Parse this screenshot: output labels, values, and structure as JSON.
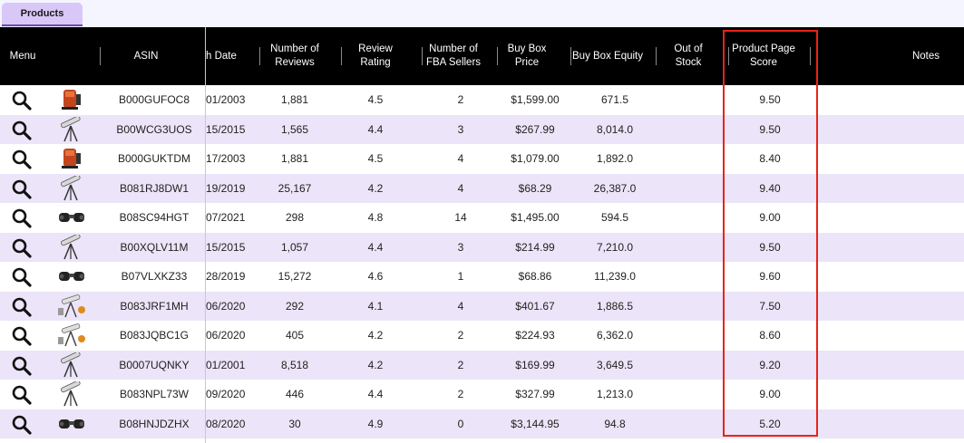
{
  "tabs": [
    {
      "label": "Products",
      "active": true
    }
  ],
  "columns": {
    "menu": "Menu",
    "asin": "ASIN",
    "launch_date": "h Date",
    "reviews": "Number of\nReviews",
    "rating": "Review\nRating",
    "fba_sellers": "Number of\nFBA Sellers",
    "price": "Buy Box\nPrice",
    "equity": "Buy Box Equity",
    "oos": "Out of\nStock",
    "score": "Product Page\nScore",
    "notes": "Notes"
  },
  "rows": [
    {
      "icon": "search-icon",
      "thumb": "telescope-orange",
      "asin": "B000GUFOC8",
      "date": "01/2003",
      "reviews": "1,881",
      "rating": "4.5",
      "fba": "2",
      "price": "$1,599.00",
      "equity": "671.5",
      "oos": "",
      "score": "9.50"
    },
    {
      "icon": "search-icon",
      "thumb": "telescope-tripod",
      "asin": "B00WCG3UOS",
      "date": "15/2015",
      "reviews": "1,565",
      "rating": "4.4",
      "fba": "3",
      "price": "$267.99",
      "equity": "8,014.0",
      "oos": "",
      "score": "9.50"
    },
    {
      "icon": "search-icon",
      "thumb": "telescope-orange",
      "asin": "B000GUKTDM",
      "date": "17/2003",
      "reviews": "1,881",
      "rating": "4.5",
      "fba": "4",
      "price": "$1,079.00",
      "equity": "1,892.0",
      "oos": "",
      "score": "8.40"
    },
    {
      "icon": "search-icon",
      "thumb": "telescope-tripod",
      "asin": "B081RJ8DW1",
      "date": "19/2019",
      "reviews": "25,167",
      "rating": "4.2",
      "fba": "4",
      "price": "$68.29",
      "equity": "26,387.0",
      "oos": "",
      "score": "9.40"
    },
    {
      "icon": "search-icon",
      "thumb": "binoculars",
      "asin": "B08SC94HGT",
      "date": "07/2021",
      "reviews": "298",
      "rating": "4.8",
      "fba": "14",
      "price": "$1,495.00",
      "equity": "594.5",
      "oos": "",
      "score": "9.00"
    },
    {
      "icon": "search-icon",
      "thumb": "telescope-tripod",
      "asin": "B00XQLV11M",
      "date": "15/2015",
      "reviews": "1,057",
      "rating": "4.4",
      "fba": "3",
      "price": "$214.99",
      "equity": "7,210.0",
      "oos": "",
      "score": "9.50"
    },
    {
      "icon": "search-icon",
      "thumb": "binoculars",
      "asin": "B07VLXKZ33",
      "date": "28/2019",
      "reviews": "15,272",
      "rating": "4.6",
      "fba": "1",
      "price": "$68.86",
      "equity": "11,239.0",
      "oos": "",
      "score": "9.60"
    },
    {
      "icon": "search-icon",
      "thumb": "telescope-kit",
      "asin": "B083JRF1MH",
      "date": "06/2020",
      "reviews": "292",
      "rating": "4.1",
      "fba": "4",
      "price": "$401.67",
      "equity": "1,886.5",
      "oos": "",
      "score": "7.50"
    },
    {
      "icon": "search-icon",
      "thumb": "telescope-kit",
      "asin": "B083JQBC1G",
      "date": "06/2020",
      "reviews": "405",
      "rating": "4.2",
      "fba": "2",
      "price": "$224.93",
      "equity": "6,362.0",
      "oos": "",
      "score": "8.60"
    },
    {
      "icon": "search-icon",
      "thumb": "telescope-tripod",
      "asin": "B0007UQNKY",
      "date": "01/2001",
      "reviews": "8,518",
      "rating": "4.2",
      "fba": "2",
      "price": "$169.99",
      "equity": "3,649.5",
      "oos": "",
      "score": "9.20"
    },
    {
      "icon": "search-icon",
      "thumb": "telescope-tripod",
      "asin": "B083NPL73W",
      "date": "09/2020",
      "reviews": "446",
      "rating": "4.4",
      "fba": "2",
      "price": "$327.99",
      "equity": "1,213.0",
      "oos": "",
      "score": "9.00"
    },
    {
      "icon": "search-icon",
      "thumb": "binoculars",
      "asin": "B08HNJDZHX",
      "date": "08/2020",
      "reviews": "30",
      "rating": "4.9",
      "fba": "0",
      "price": "$3,144.95",
      "equity": "94.8",
      "oos": "",
      "score": "5.20"
    }
  ],
  "colors": {
    "header_bg": "#000000",
    "row_alt": "#ece4f8",
    "tab_active": "#d9c7f7",
    "highlight": "#e8231b"
  }
}
